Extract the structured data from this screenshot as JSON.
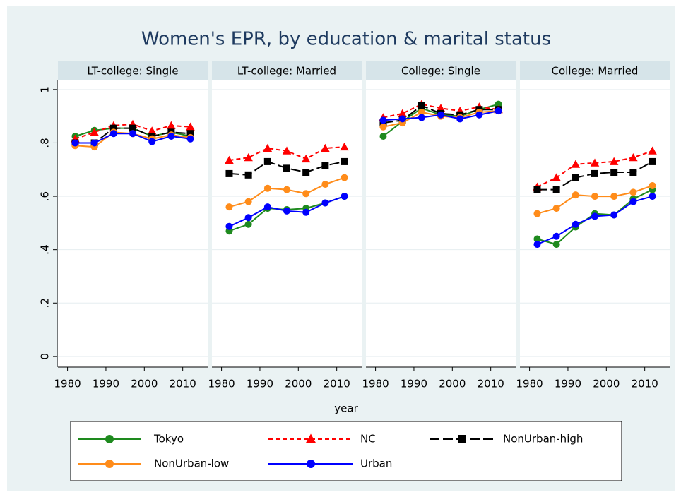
{
  "chart_data": {
    "type": "line",
    "title": "Women's EPR, by education & marital status",
    "x_label": "year",
    "x": [
      1982,
      1987,
      1992,
      1997,
      2002,
      2007,
      2012
    ],
    "xlim": [
      1977.5,
      2016.5
    ],
    "xticks": [
      1980,
      1990,
      2000,
      2010
    ],
    "ylim": [
      -0.04,
      1.034
    ],
    "yticks": [
      0,
      {
        "value": 0.2,
        "label": ".2"
      },
      {
        "value": 0.4,
        "label": ".4"
      },
      {
        "value": 0.6,
        "label": ".6"
      },
      {
        "value": 0.8,
        "label": ".8"
      },
      1
    ],
    "grid": true,
    "legend": "bottom",
    "series": [
      {
        "name": "Tokyo",
        "color": "#1e8a1e",
        "marker": "circle",
        "line_style": "solid"
      },
      {
        "name": "NC",
        "color": "#ff0000",
        "marker": "triangle",
        "line_style": "dash"
      },
      {
        "name": "NonUrban-high",
        "color": "#000000",
        "marker": "square",
        "line_style": "longdash"
      },
      {
        "name": "NonUrban-low",
        "color": "#ff8c1a",
        "marker": "circle",
        "line_style": "solid"
      },
      {
        "name": "Urban",
        "color": "#0000ff",
        "marker": "circle",
        "line_style": "solid"
      }
    ],
    "panels": [
      {
        "title": "LT-college: Single",
        "series": [
          {
            "values": [
              0.825,
              0.847,
              0.855,
              0.855,
              0.825,
              0.84,
              0.825
            ]
          },
          {
            "values": [
              0.815,
              0.84,
              0.865,
              0.87,
              0.845,
              0.865,
              0.86
            ]
          },
          {
            "values": [
              0.8,
              0.8,
              0.855,
              0.855,
              0.825,
              0.84,
              0.835
            ]
          },
          {
            "values": [
              0.79,
              0.785,
              0.84,
              0.835,
              0.815,
              0.83,
              0.82
            ]
          },
          {
            "values": [
              0.8,
              0.8,
              0.835,
              0.835,
              0.805,
              0.825,
              0.815
            ]
          }
        ]
      },
      {
        "title": "LT-college: Married",
        "series": [
          {
            "values": [
              0.47,
              0.495,
              0.555,
              0.55,
              0.555,
              0.575,
              0.6
            ]
          },
          {
            "values": [
              0.735,
              0.745,
              0.78,
              0.77,
              0.74,
              0.78,
              0.785
            ]
          },
          {
            "values": [
              0.685,
              0.68,
              0.73,
              0.705,
              0.69,
              0.715,
              0.73
            ]
          },
          {
            "values": [
              0.56,
              0.58,
              0.63,
              0.625,
              0.61,
              0.645,
              0.67
            ]
          },
          {
            "values": [
              0.487,
              0.52,
              0.56,
              0.545,
              0.54,
              0.575,
              0.6
            ]
          }
        ]
      },
      {
        "title": "College: Single",
        "series": [
          {
            "values": [
              0.825,
              0.88,
              0.93,
              0.905,
              0.9,
              0.925,
              0.945
            ]
          },
          {
            "values": [
              0.895,
              0.91,
              0.945,
              0.93,
              0.92,
              0.935,
              0.925
            ]
          },
          {
            "values": [
              0.875,
              0.885,
              0.94,
              0.91,
              0.905,
              0.925,
              0.925
            ]
          },
          {
            "values": [
              0.86,
              0.875,
              0.915,
              0.9,
              0.895,
              0.915,
              0.92
            ]
          },
          {
            "values": [
              0.885,
              0.89,
              0.895,
              0.905,
              0.89,
              0.905,
              0.92
            ]
          }
        ]
      },
      {
        "title": "College: Married",
        "series": [
          {
            "values": [
              0.44,
              0.42,
              0.485,
              0.535,
              0.53,
              0.59,
              0.625
            ]
          },
          {
            "values": [
              0.635,
              0.67,
              0.72,
              0.725,
              0.73,
              0.745,
              0.77
            ]
          },
          {
            "values": [
              0.625,
              0.625,
              0.67,
              0.685,
              0.69,
              0.69,
              0.73
            ]
          },
          {
            "values": [
              0.535,
              0.555,
              0.605,
              0.6,
              0.6,
              0.615,
              0.64
            ]
          },
          {
            "values": [
              0.42,
              0.45,
              0.495,
              0.525,
              0.53,
              0.58,
              0.6
            ]
          }
        ]
      }
    ]
  }
}
